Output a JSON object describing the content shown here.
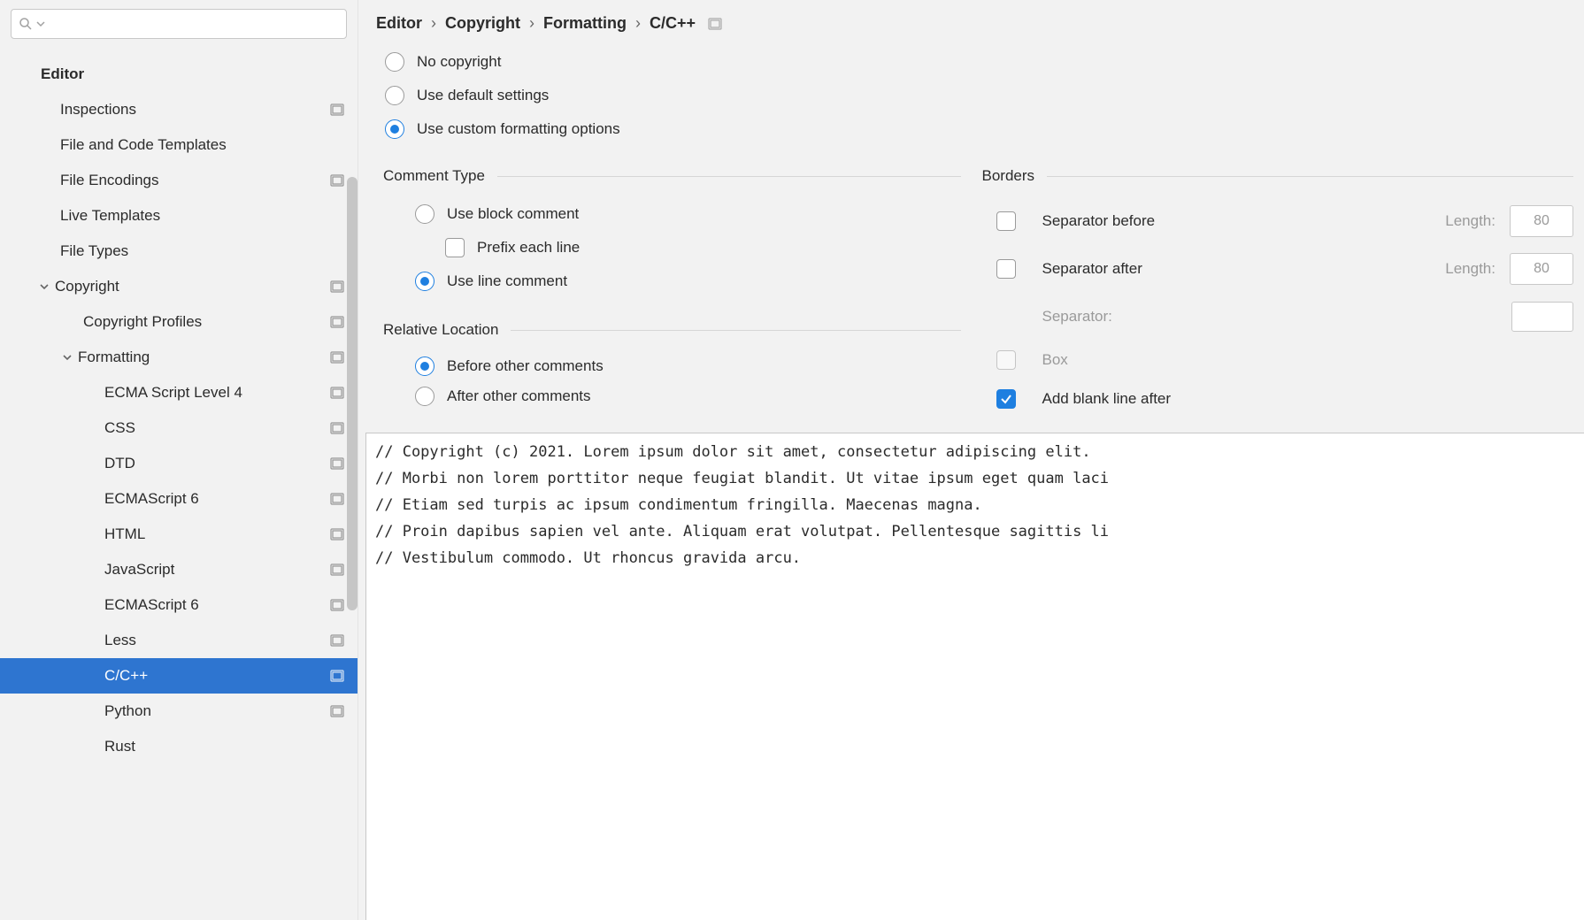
{
  "sidebar": {
    "search_placeholder": "",
    "header": "Editor",
    "items": [
      {
        "label": "Inspections",
        "depth": 1,
        "badge": true
      },
      {
        "label": "File and Code Templates",
        "depth": 1
      },
      {
        "label": "File Encodings",
        "depth": 1,
        "badge": true
      },
      {
        "label": "Live Templates",
        "depth": 1
      },
      {
        "label": "File Types",
        "depth": 1
      },
      {
        "label": "Copyright",
        "depth": 1,
        "expandable": true,
        "badge": true
      },
      {
        "label": "Copyright Profiles",
        "depth": 2,
        "badge": true
      },
      {
        "label": "Formatting",
        "depth": 2,
        "expandable": true,
        "badge": true
      },
      {
        "label": "ECMA Script Level 4",
        "depth": 3,
        "badge": true
      },
      {
        "label": "CSS",
        "depth": 3,
        "badge": true
      },
      {
        "label": "DTD",
        "depth": 3,
        "badge": true
      },
      {
        "label": "ECMAScript 6",
        "depth": 3,
        "badge": true
      },
      {
        "label": "HTML",
        "depth": 3,
        "badge": true
      },
      {
        "label": "JavaScript",
        "depth": 3,
        "badge": true
      },
      {
        "label": "ECMAScript 6",
        "depth": 3,
        "badge": true
      },
      {
        "label": "Less",
        "depth": 3,
        "badge": true
      },
      {
        "label": "C/C++",
        "depth": 3,
        "badge": true,
        "selected": true
      },
      {
        "label": "Python",
        "depth": 3,
        "badge": true
      },
      {
        "label": "Rust",
        "depth": 3
      }
    ]
  },
  "breadcrumb": [
    "Editor",
    "Copyright",
    "Formatting",
    "C/C++"
  ],
  "mode": {
    "options": [
      "No copyright",
      "Use default settings",
      "Use custom formatting options"
    ],
    "selected": 2
  },
  "comment_type": {
    "title": "Comment Type",
    "options": [
      "Use block comment",
      "Use line comment"
    ],
    "selected": 1,
    "prefix_each_line_label": "Prefix each line",
    "prefix_each_line_checked": false
  },
  "relative_location": {
    "title": "Relative Location",
    "options": [
      "Before other comments",
      "After other comments"
    ],
    "selected": 0
  },
  "borders": {
    "title": "Borders",
    "separator_before": {
      "label": "Separator before",
      "checked": false,
      "length_label": "Length:",
      "length": "80"
    },
    "separator_after": {
      "label": "Separator after",
      "checked": false,
      "length_label": "Length:",
      "length": "80"
    },
    "separator_label": "Separator:",
    "box": {
      "label": "Box",
      "checked": false,
      "disabled": true
    },
    "blank_after": {
      "label": "Add blank line after",
      "checked": true
    }
  },
  "preview_lines": [
    "// Copyright (c) 2021. Lorem ipsum dolor sit amet, consectetur adipiscing elit.",
    "// Morbi non lorem porttitor neque feugiat blandit. Ut vitae ipsum eget quam laci",
    "// Etiam sed turpis ac ipsum condimentum fringilla. Maecenas magna.",
    "// Proin dapibus sapien vel ante. Aliquam erat volutpat. Pellentesque sagittis li",
    "// Vestibulum commodo. Ut rhoncus gravida arcu."
  ]
}
